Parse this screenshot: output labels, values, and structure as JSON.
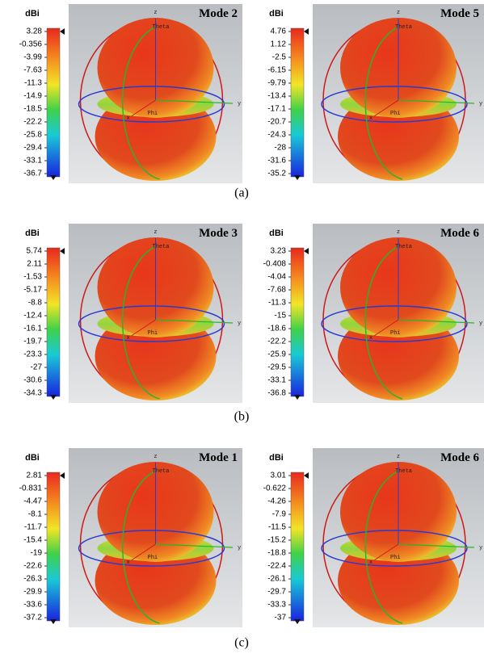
{
  "rows": [
    {
      "caption": "(a)",
      "panels": [
        {
          "unit": "dBi",
          "mode": "Mode 2",
          "scale": [
            "3.28",
            "-0.356",
            "-3.99",
            "-7.63",
            "-11.3",
            "-14.9",
            "-18.5",
            "-22.2",
            "-25.8",
            "-29.4",
            "-33.1",
            "-36.7"
          ],
          "axes": {
            "z": "z",
            "y": "y",
            "x": "x",
            "theta": "Theta",
            "phi": "Phi"
          }
        },
        {
          "unit": "dBi",
          "mode": "Mode 5",
          "scale": [
            "4.76",
            "1.12",
            "-2.5",
            "-6.15",
            "-9.79",
            "-13.4",
            "-17.1",
            "-20.7",
            "-24.3",
            "-28",
            "-31.6",
            "-35.2"
          ],
          "axes": {
            "z": "z",
            "y": "y",
            "x": "x",
            "theta": "Theta",
            "phi": "Phi"
          }
        }
      ]
    },
    {
      "caption": "(b)",
      "panels": [
        {
          "unit": "dBi",
          "mode": "Mode 3",
          "scale": [
            "5.74",
            "2.11",
            "-1.53",
            "-5.17",
            "-8.8",
            "-12.4",
            "-16.1",
            "-19.7",
            "-23.3",
            "-27",
            "-30.6",
            "-34.3"
          ],
          "axes": {
            "z": "z",
            "y": "y",
            "x": "x",
            "theta": "Theta",
            "phi": "Phi"
          }
        },
        {
          "unit": "dBi",
          "mode": "Mode 6",
          "scale": [
            "3.23",
            "-0.408",
            "-4.04",
            "-7.68",
            "-11.3",
            "-15",
            "-18.6",
            "-22.2",
            "-25.9",
            "-29.5",
            "-33.1",
            "-36.8"
          ],
          "axes": {
            "z": "z",
            "y": "y",
            "x": "x",
            "theta": "Theta",
            "phi": "Phi"
          }
        }
      ]
    },
    {
      "caption": "(c)",
      "panels": [
        {
          "unit": "dBi",
          "mode": "Mode 1",
          "scale": [
            "2.81",
            "-0.831",
            "-4.47",
            "-8.1",
            "-11.7",
            "-15.4",
            "-19",
            "-22.6",
            "-26.3",
            "-29.9",
            "-33.6",
            "-37.2"
          ],
          "axes": {
            "z": "z",
            "y": "y",
            "x": "x",
            "theta": "Theta",
            "phi": "Phi"
          }
        },
        {
          "unit": "dBi",
          "mode": "Mode 6",
          "scale": [
            "3.01",
            "-0.622",
            "-4.26",
            "-7.9",
            "-11.5",
            "-15.2",
            "-18.8",
            "-22.4",
            "-26.1",
            "-29.7",
            "-33.3",
            "-37"
          ],
          "axes": {
            "z": "z",
            "y": "y",
            "x": "x",
            "theta": "Theta",
            "phi": "Phi"
          }
        }
      ]
    }
  ]
}
